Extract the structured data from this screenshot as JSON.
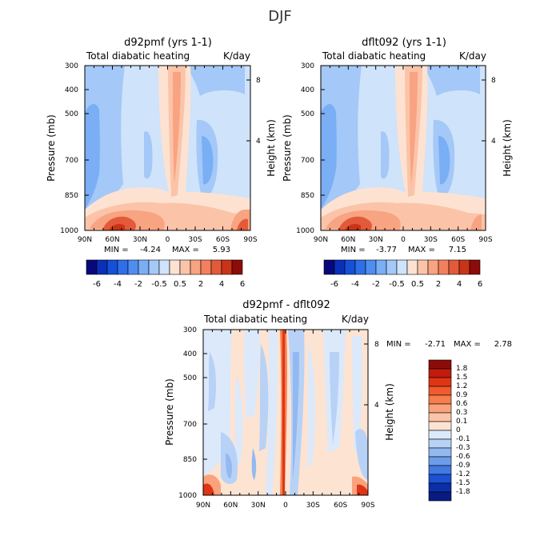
{
  "page": {
    "title": "DJF"
  },
  "chart_data": [
    {
      "type": "heatmap",
      "title": "d92pmf (yrs 1-1)",
      "subtitle_left": "Total diabatic heating",
      "subtitle_right": "K/day",
      "ylabel": "Pressure (mb)",
      "ylabel_right": "Height (km)",
      "x_ticks": [
        "90N",
        "60N",
        "30N",
        "0",
        "30S",
        "60S",
        "90S"
      ],
      "y_ticks": [
        "300",
        "400",
        "500",
        "700",
        "850",
        "1000"
      ],
      "y_ticks_right": [
        "8",
        "4"
      ],
      "min_label": "MIN =",
      "min_value": "-4.24",
      "max_label": "MAX =",
      "max_value": "5.93",
      "colorbar_orientation": "horizontal",
      "colorbar_labels": [
        "-6",
        "-4",
        "-2",
        "-0.5",
        "0.5",
        "2",
        "4",
        "6"
      ]
    },
    {
      "type": "heatmap",
      "title": "dflt092 (yrs 1-1)",
      "subtitle_left": "Total diabatic heating",
      "subtitle_right": "K/day",
      "ylabel": "Pressure (mb)",
      "ylabel_right": "Height (km)",
      "x_ticks": [
        "90N",
        "60N",
        "30N",
        "0",
        "30S",
        "60S",
        "90S"
      ],
      "y_ticks": [
        "300",
        "400",
        "500",
        "700",
        "850",
        "1000"
      ],
      "y_ticks_right": [
        "8",
        "4"
      ],
      "min_label": "MIN =",
      "min_value": "-3.77",
      "max_label": "MAX =",
      "max_value": "7.15",
      "colorbar_orientation": "horizontal",
      "colorbar_labels": [
        "-6",
        "-4",
        "-2",
        "-0.5",
        "0.5",
        "2",
        "4",
        "6"
      ]
    },
    {
      "type": "heatmap",
      "title": "d92pmf - dflt092",
      "subtitle_left": "Total diabatic heating",
      "subtitle_right": "K/day",
      "ylabel": "Pressure (mb)",
      "ylabel_right": "Height (km)",
      "x_ticks": [
        "90N",
        "60N",
        "30N",
        "0",
        "30S",
        "60S",
        "90S"
      ],
      "y_ticks": [
        "300",
        "400",
        "500",
        "700",
        "850",
        "1000"
      ],
      "y_ticks_right": [
        "8",
        "4"
      ],
      "min_label": "MIN =",
      "min_value": "-2.71",
      "max_label": "MAX =",
      "max_value": "2.78",
      "colorbar_orientation": "vertical",
      "colorbar_labels": [
        "1.8",
        "1.5",
        "1.2",
        "0.9",
        "0.6",
        "0.3",
        "0.1",
        "0",
        "-0.1",
        "-0.3",
        "-0.6",
        "-0.9",
        "-1.2",
        "-1.5",
        "-1.8"
      ]
    }
  ],
  "colors": {
    "palette_blue_to_red": [
      "#08087a",
      "#0a2fb8",
      "#1450d8",
      "#2d6fe8",
      "#4f8ef0",
      "#7aaef5",
      "#a4c8f7",
      "#cfe3fa",
      "#fde2d2",
      "#fbc4a8",
      "#f8a382",
      "#f2805e",
      "#e25a3a",
      "#c83418",
      "#8c0c0a"
    ],
    "diff_colorbar_top_to_bottom": [
      "#8c0c0a",
      "#c21a0c",
      "#e03515",
      "#f05a2c",
      "#f67d4e",
      "#f9a27c",
      "#fbc4a8",
      "#fde3d2",
      "#dbe9fb",
      "#b7d2f6",
      "#93b9f1",
      "#6d9ceb",
      "#4279e2",
      "#1a52d2",
      "#0a2fa8",
      "#081b80"
    ]
  }
}
